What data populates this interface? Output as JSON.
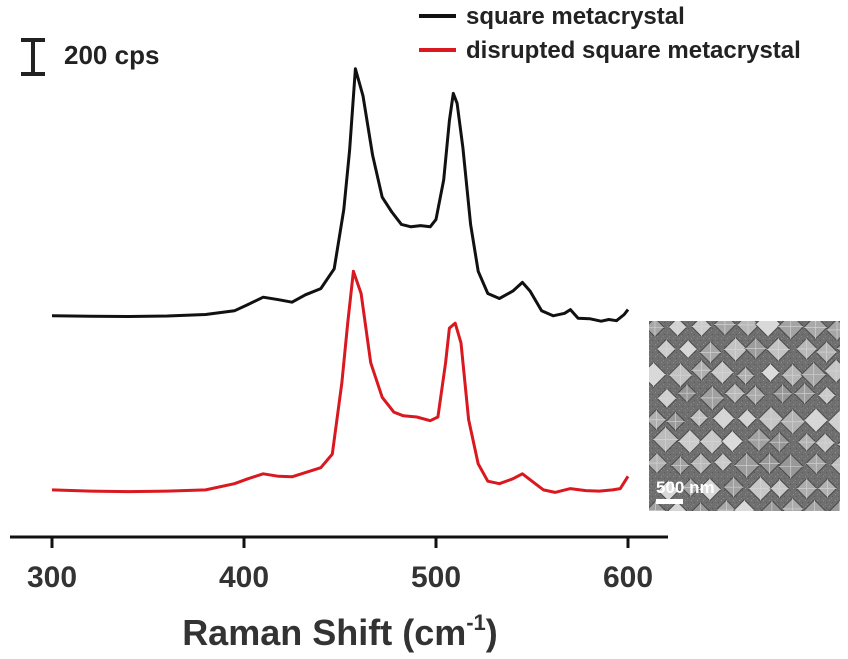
{
  "chart_data": {
    "type": "line",
    "xlabel": "Raman Shift (cm",
    "xlabel_sup": "-1",
    "xlabel_close": ")",
    "x_ticks": [
      "300",
      "400",
      "500",
      "600"
    ],
    "xlim": [
      300,
      600
    ],
    "scale_bar_label": "200 cps",
    "scale_bar_value": 200,
    "legend_position": "top-right",
    "series": [
      {
        "name": "square metacrystal",
        "color": "#111111",
        "offset": 700,
        "points": [
          [
            300,
            50
          ],
          [
            320,
            48
          ],
          [
            340,
            47
          ],
          [
            360,
            49
          ],
          [
            380,
            55
          ],
          [
            395,
            70
          ],
          [
            402,
            95
          ],
          [
            410,
            125
          ],
          [
            418,
            115
          ],
          [
            425,
            105
          ],
          [
            432,
            135
          ],
          [
            440,
            160
          ],
          [
            447,
            240
          ],
          [
            452,
            480
          ],
          [
            455,
            720
          ],
          [
            458,
            1050
          ],
          [
            462,
            940
          ],
          [
            467,
            700
          ],
          [
            472,
            530
          ],
          [
            477,
            470
          ],
          [
            482,
            420
          ],
          [
            487,
            410
          ],
          [
            492,
            415
          ],
          [
            497,
            410
          ],
          [
            500,
            440
          ],
          [
            504,
            600
          ],
          [
            507,
            840
          ],
          [
            509,
            950
          ],
          [
            511,
            910
          ],
          [
            514,
            730
          ],
          [
            518,
            420
          ],
          [
            522,
            230
          ],
          [
            527,
            140
          ],
          [
            533,
            120
          ],
          [
            540,
            150
          ],
          [
            545,
            185
          ],
          [
            549,
            150
          ],
          [
            555,
            70
          ],
          [
            561,
            50
          ],
          [
            567,
            60
          ],
          [
            570,
            75
          ],
          [
            574,
            40
          ],
          [
            580,
            38
          ],
          [
            586,
            28
          ],
          [
            590,
            35
          ],
          [
            594,
            30
          ],
          [
            598,
            55
          ],
          [
            600,
            75
          ]
        ]
      },
      {
        "name": "disrupted square metacrystal",
        "color": "#d9181f",
        "offset": 0,
        "points": [
          [
            300,
            45
          ],
          [
            320,
            40
          ],
          [
            340,
            38
          ],
          [
            360,
            40
          ],
          [
            380,
            45
          ],
          [
            395,
            70
          ],
          [
            402,
            90
          ],
          [
            410,
            110
          ],
          [
            418,
            100
          ],
          [
            425,
            98
          ],
          [
            432,
            115
          ],
          [
            440,
            135
          ],
          [
            446,
            190
          ],
          [
            451,
            480
          ],
          [
            454,
            720
          ],
          [
            457,
            930
          ],
          [
            461,
            840
          ],
          [
            466,
            560
          ],
          [
            472,
            420
          ],
          [
            478,
            360
          ],
          [
            483,
            345
          ],
          [
            490,
            340
          ],
          [
            497,
            325
          ],
          [
            501,
            340
          ],
          [
            505,
            560
          ],
          [
            507,
            700
          ],
          [
            510,
            720
          ],
          [
            513,
            640
          ],
          [
            517,
            330
          ],
          [
            522,
            150
          ],
          [
            527,
            80
          ],
          [
            533,
            70
          ],
          [
            540,
            90
          ],
          [
            545,
            110
          ],
          [
            550,
            80
          ],
          [
            556,
            45
          ],
          [
            562,
            35
          ],
          [
            570,
            50
          ],
          [
            578,
            42
          ],
          [
            585,
            40
          ],
          [
            592,
            45
          ],
          [
            596,
            50
          ],
          [
            600,
            100
          ]
        ]
      }
    ]
  },
  "inset": {
    "label": "500 nm"
  }
}
